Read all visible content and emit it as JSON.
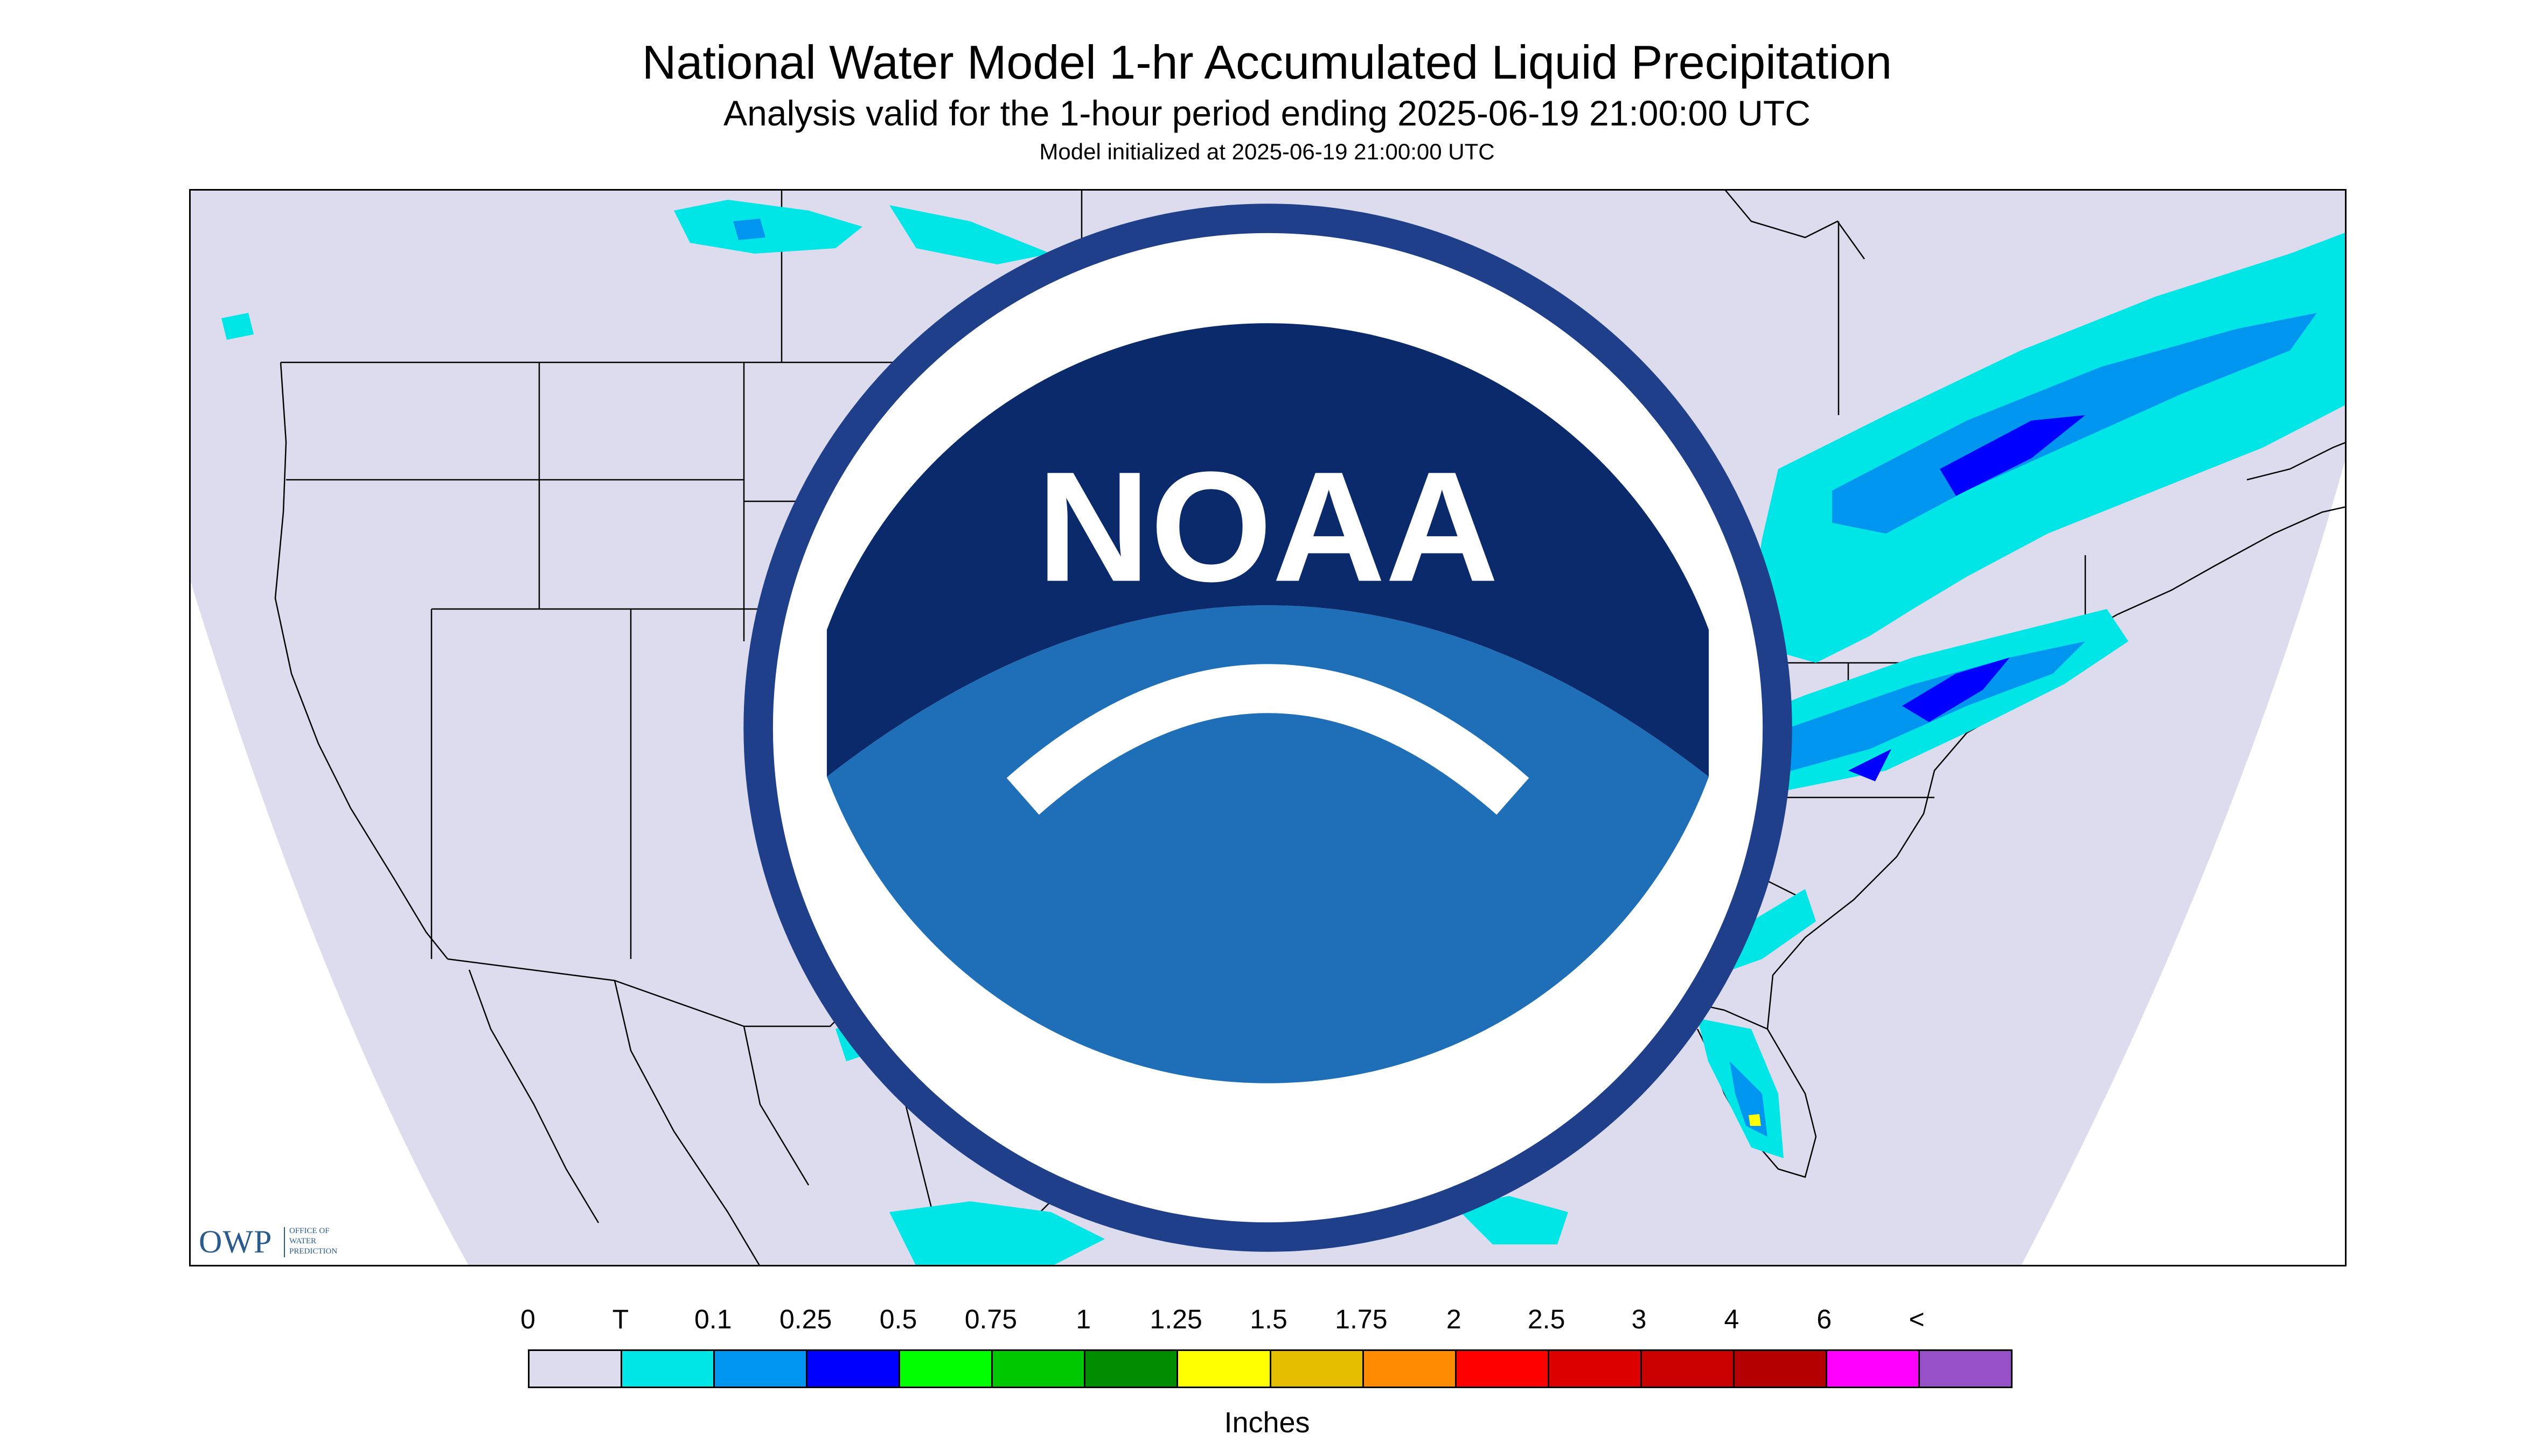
{
  "title": "National Water Model 1-hr Accumulated Liquid Precipitation",
  "subtitle": "Analysis valid for the 1-hour period ending 2025-06-19 21:00:00 UTC",
  "init_line": "Model initialized at 2025-06-19 21:00:00 UTC",
  "logos": {
    "owp_text": "OWP",
    "owp_sub": [
      "OFFICE OF",
      "WATER",
      "PREDICTION"
    ],
    "noaa_text": "NOAA"
  },
  "colorbar": {
    "labels": [
      "0",
      "T",
      "0.1",
      "0.25",
      "0.5",
      "0.75",
      "1",
      "1.25",
      "1.5",
      "1.75",
      "2",
      "2.5",
      "3",
      "4",
      "6",
      "<"
    ],
    "colors": [
      "#dcdcee",
      "#00e6e6",
      "#0096f0",
      "#0000ff",
      "#00ff00",
      "#00c800",
      "#008c00",
      "#ffff00",
      "#e6be00",
      "#ff8c00",
      "#ff0000",
      "#dc0000",
      "#c80000",
      "#b40000",
      "#ff00ff",
      "#9650c8"
    ],
    "units": "Inches"
  },
  "map_colors": {
    "domain_fill": "#dcdcee",
    "outside_fill": "#ffffff",
    "border": "#000000",
    "trace": "#00e6e6",
    "light": "#0096f0",
    "moderate": "#0000ff",
    "heavy": "#00c800",
    "very_heavy": "#ffff00"
  }
}
